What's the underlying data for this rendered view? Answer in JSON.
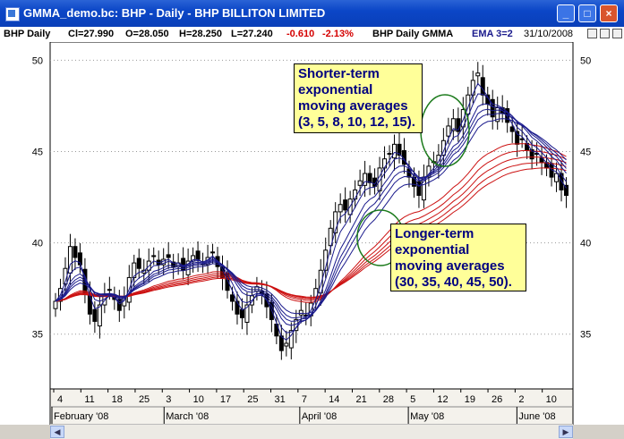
{
  "window": {
    "title": "GMMA_demo.bc: BHP - Daily - BHP BILLITON LIMITED",
    "buttons": {
      "minimize": "_",
      "maximize": "□",
      "close": "×"
    }
  },
  "infobar": {
    "symbol": "BHP Daily",
    "close": "Cl=27.990",
    "open": "O=28.050",
    "high": "H=28.250",
    "low": "L=27.240",
    "change": "-0.610",
    "change_pct": "-2.13%",
    "indicator": "BHP Daily GMMA",
    "ema": "EMA 3=2",
    "date": "31/10/2008"
  },
  "colors": {
    "short_ema": "#1a1a8c",
    "long_ema": "#cc1111",
    "annotation_bg": "#ffff99",
    "annotation_text": "#000080"
  },
  "annotations": {
    "short": [
      "Shorter-term",
      "exponential",
      "moving averages",
      "(3, 5, 8, 10, 12, 15)."
    ],
    "long": [
      "Longer-term",
      "exponential",
      "moving averages",
      "(30, 35, 40, 45, 50)."
    ]
  },
  "chart_data": {
    "type": "candlestick",
    "y_ticks": [
      "35",
      "40",
      "45",
      "50"
    ],
    "ylim": [
      32,
      51
    ],
    "x_days": [
      "4",
      "11",
      "18",
      "25",
      "3",
      "10",
      "17",
      "25",
      "31",
      "7",
      "14",
      "21",
      "28",
      "5",
      "12",
      "19",
      "26",
      "2",
      "10"
    ],
    "x_months": [
      "February '08",
      "March '08",
      "April '08",
      "May '08",
      "June '08"
    ],
    "closes": [
      36.8,
      37.5,
      38.6,
      39.8,
      39.2,
      38.8,
      37.2,
      36.1,
      35.7,
      36.6,
      37.2,
      37.4,
      36.9,
      36.3,
      37.0,
      38.1,
      38.9,
      38.6,
      38.5,
      39.0,
      39.3,
      38.8,
      39.1,
      39.2,
      38.7,
      38.9,
      38.5,
      39.0,
      39.3,
      39.1,
      38.8,
      39.2,
      39.5,
      38.7,
      38.1,
      37.4,
      36.8,
      36.1,
      35.9,
      36.6,
      37.1,
      37.6,
      37.2,
      36.5,
      35.8,
      34.9,
      34.1,
      34.5,
      35.2,
      35.8,
      36.3,
      36.0,
      36.7,
      37.5,
      38.5,
      39.6,
      40.8,
      41.7,
      42.1,
      41.8,
      42.4,
      42.9,
      43.4,
      43.8,
      43.3,
      43.1,
      44.1,
      44.6,
      44.9,
      45.4,
      44.8,
      44.3,
      43.6,
      43.1,
      42.6,
      43.6,
      44.2,
      44.4,
      44.8,
      45.6,
      46.4,
      46.8,
      46.1,
      47.3,
      48.1,
      48.9,
      49.3,
      48.1,
      47.6,
      46.9,
      47.4,
      47.1,
      46.6,
      46.1,
      45.4,
      45.7,
      45.1,
      44.6,
      44.9,
      44.4,
      44.1,
      43.6,
      43.8,
      42.9,
      42.6
    ]
  }
}
